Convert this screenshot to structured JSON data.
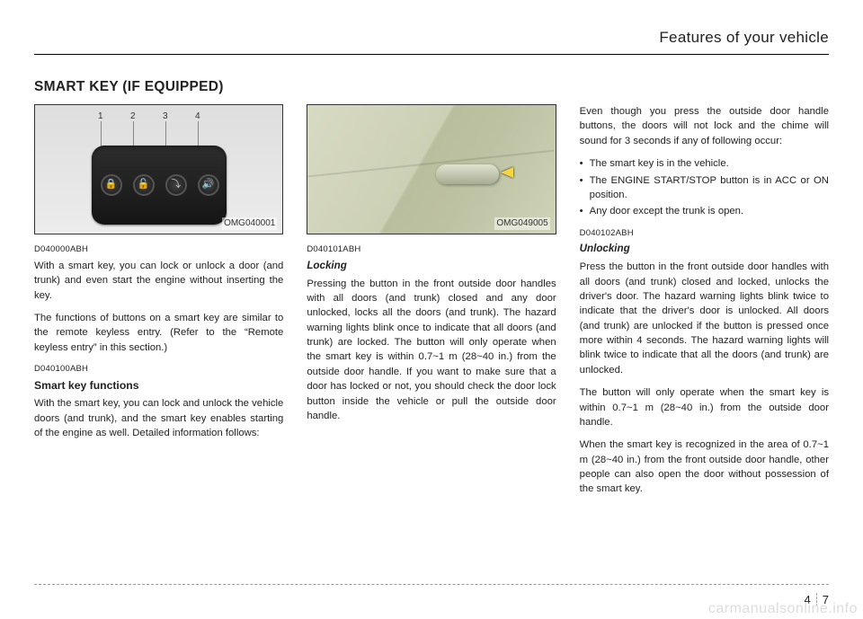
{
  "header": {
    "right_title": "Features of your vehicle"
  },
  "section": {
    "title": "SMART KEY (IF EQUIPPED)"
  },
  "figure1": {
    "code": "OMG040001",
    "numbers": [
      "1",
      "2",
      "3",
      "4"
    ]
  },
  "figure2": {
    "code": "OMG049005"
  },
  "col1": {
    "code1": "D040000ABH",
    "p1": "With a smart key, you can lock or unlock a door (and trunk) and even start the engine without inserting the key.",
    "p2": "The functions of buttons on a smart key are similar to the remote keyless entry. (Refer to the “Remote keyless entry” in this section.)",
    "code2": "D040100ABH",
    "h2": "Smart key functions",
    "p3": "With the smart key, you can lock and unlock the vehicle doors (and trunk), and the smart key enables starting of the engine as well.  Detailed information follows:"
  },
  "col2": {
    "code1": "D040101ABH",
    "h_lock": "Locking",
    "p1": "Pressing the button in the front outside door handles with all doors (and trunk) closed and any door unlocked, locks all the doors (and trunk). The hazard warning lights blink once to indicate that all doors (and trunk) are locked. The button will only operate when the smart key is within 0.7~1 m (28~40 in.) from the outside door handle. If you want to make sure that a door has locked or not, you should check the door lock button inside the vehicle or pull the outside door handle."
  },
  "col3": {
    "p1": "Even though you press the outside door handle buttons, the doors will not lock and the chime will sound for 3 seconds if any of following occur:",
    "bullets": [
      "The smart key is in the vehicle.",
      "The ENGINE START/STOP button is in ACC or ON position.",
      "Any door except the trunk is open."
    ],
    "code1": "D040102ABH",
    "h_unlock": "Unlocking",
    "p2": "Press the button in the front outside door handles with all doors (and trunk) closed and locked, unlocks the driver's door. The hazard warning lights blink twice to indicate that the driver's door is unlocked. All doors (and trunk) are unlocked if the button is pressed once more within 4 seconds. The hazard warning lights will blink twice to indicate that all the doors (and trunk) are unlocked.",
    "p3": "The button will only operate when the smart key is within 0.7~1 m (28~40 in.) from the outside door handle.",
    "p4": "When the smart key is recognized in the area of 0.7~1 m (28~40 in.) from the front outside door handle, other people can also open the door without possession of the smart key."
  },
  "footer": {
    "section_num": "4",
    "page_num": "7",
    "watermark": "carmanualsonline.info"
  }
}
